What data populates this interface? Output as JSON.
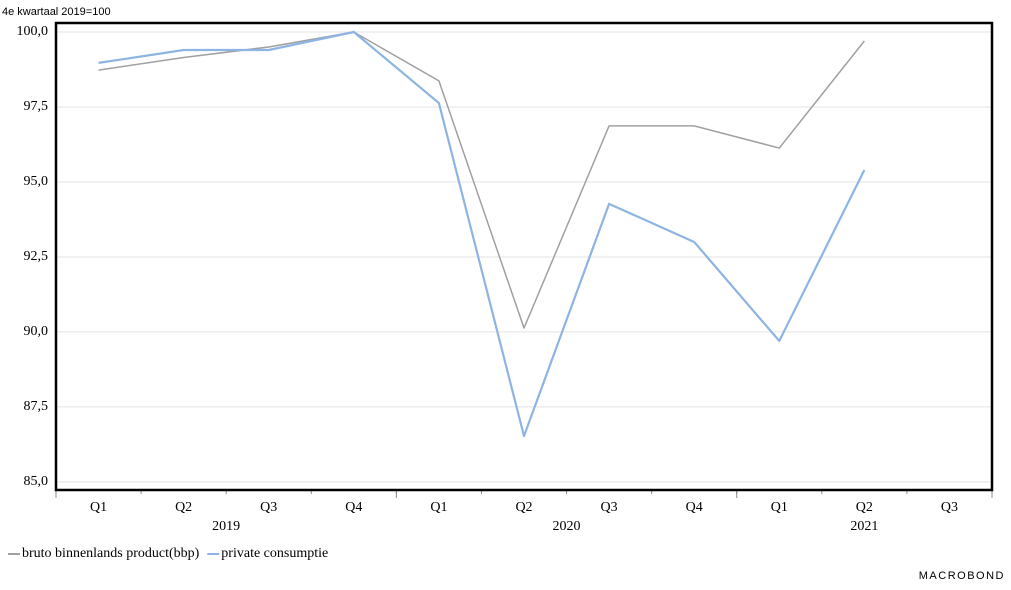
{
  "chart_data": {
    "type": "line",
    "subtitle": "4e kwartaal 2019=100",
    "categories": [
      "Q1",
      "Q2",
      "Q3",
      "Q4",
      "Q1",
      "Q2",
      "Q3",
      "Q4",
      "Q1",
      "Q2",
      "Q3"
    ],
    "x_groups": [
      {
        "label": "2019",
        "count": 4
      },
      {
        "label": "2020",
        "count": 4
      },
      {
        "label": "2021",
        "count": 3
      }
    ],
    "series": [
      {
        "name": "bruto binnenlands product(bbp)",
        "color": "#a0a0a0",
        "values": [
          98.73,
          99.15,
          99.5,
          100,
          98.37,
          90.13,
          96.87,
          96.87,
          96.13,
          99.7,
          null
        ]
      },
      {
        "name": "private consumptie",
        "color": "#8db4e2",
        "values": [
          98.97,
          99.4,
          99.4,
          100,
          97.63,
          86.53,
          94.27,
          93.0,
          89.7,
          95.4,
          null
        ]
      }
    ],
    "ylim": [
      84.73,
      100.3
    ],
    "yticks": [
      {
        "value": 85,
        "label": "85,0"
      },
      {
        "value": 87.5,
        "label": "87,5"
      },
      {
        "value": 90,
        "label": "90,0"
      },
      {
        "value": 92.5,
        "label": "92,5"
      },
      {
        "value": 95,
        "label": "95,0"
      },
      {
        "value": 97.5,
        "label": "97,5"
      },
      {
        "value": 100,
        "label": "100,0"
      }
    ],
    "grid": true,
    "logo": "MACROBOND"
  }
}
